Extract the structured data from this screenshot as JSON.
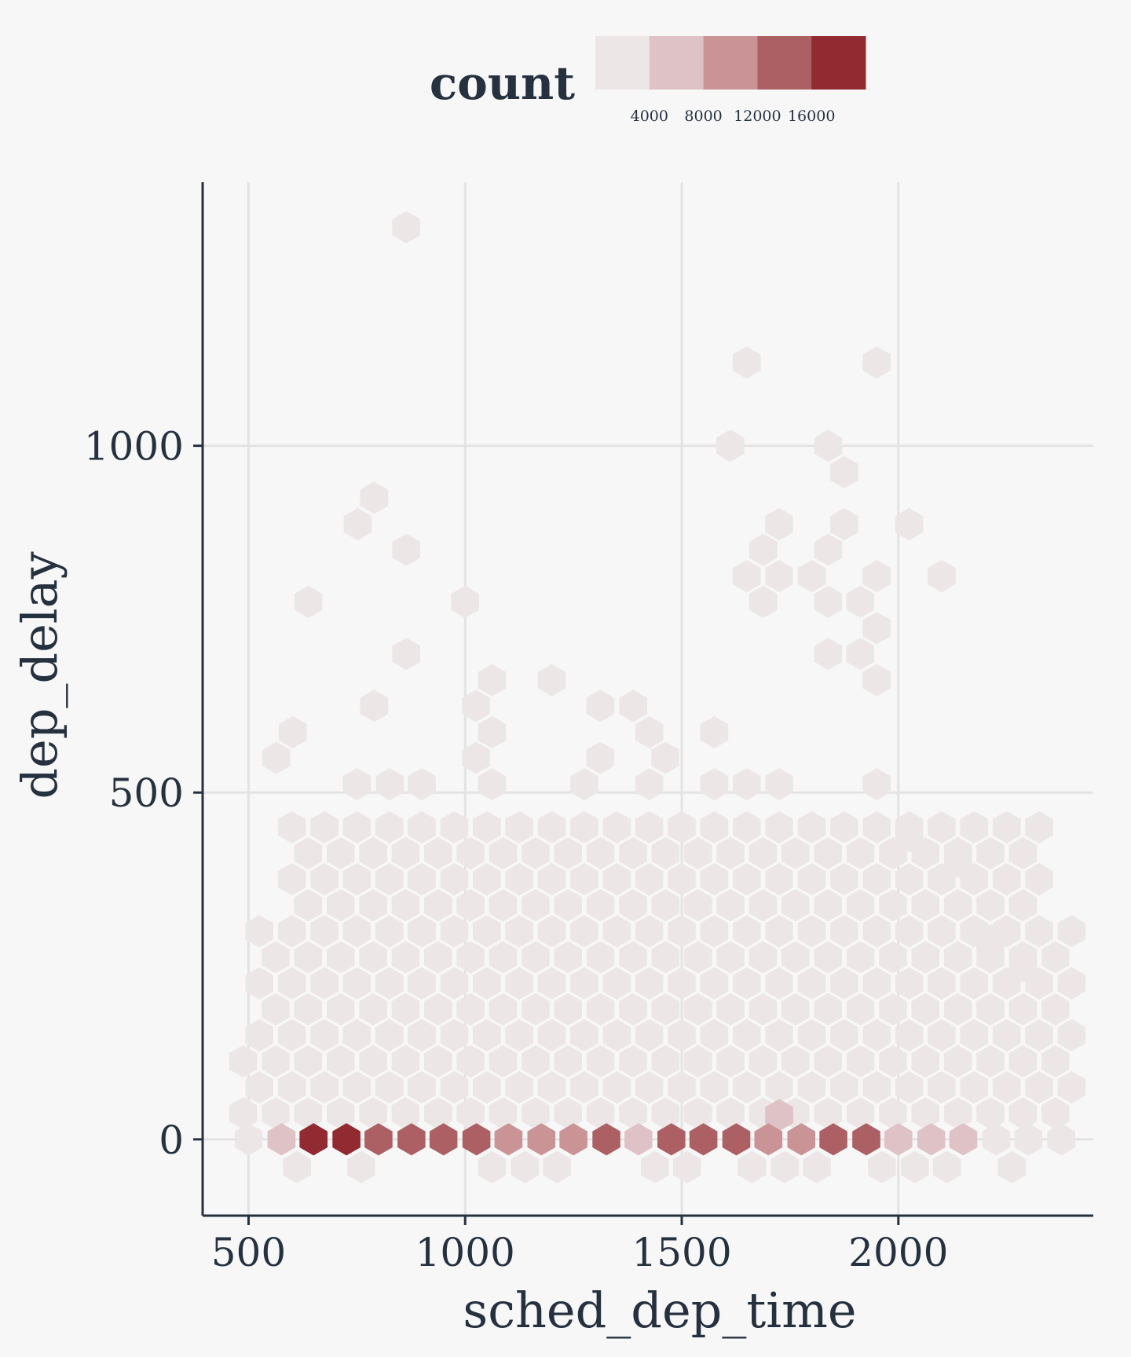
{
  "chart_data": {
    "type": "hexbin",
    "xlabel": "sched_dep_time",
    "ylabel": "dep_delay",
    "xlim": [
      394,
      2450
    ],
    "ylim": [
      -110,
      1380
    ],
    "x_ticks": [
      500,
      1000,
      1500,
      2000
    ],
    "y_ticks": [
      0,
      500,
      1000
    ],
    "x_tick_labels": [
      "500",
      "1000",
      "1500",
      "2000"
    ],
    "y_tick_labels": [
      "0",
      "500",
      "1000"
    ],
    "grid": true,
    "legend": {
      "title": "count",
      "placement": "top",
      "colors": [
        "#ece6e6",
        "#dfc2c5",
        "#ca9497",
        "#ad6064",
        "#922a32"
      ],
      "tick_values": [
        4000,
        8000,
        12000,
        16000
      ],
      "tick_labels": [
        "4000",
        "8000",
        "12000",
        "16000"
      ]
    },
    "hex_spacing": {
      "dx": 37.5,
      "dy": 37.5
    },
    "outliers": [
      [
        864,
        1315
      ],
      [
        1650,
        1120
      ],
      [
        1950,
        1120
      ],
      [
        1612,
        1000
      ],
      [
        1838,
        1000
      ],
      [
        1875,
        962
      ],
      [
        790,
        925
      ],
      [
        752,
        887
      ],
      [
        1725,
        887
      ],
      [
        1875,
        887
      ],
      [
        2025,
        887
      ],
      [
        864,
        850
      ],
      [
        1688,
        850
      ],
      [
        1838,
        850
      ],
      [
        1650,
        812
      ],
      [
        1725,
        812
      ],
      [
        1800,
        812
      ],
      [
        1950,
        812
      ],
      [
        2100,
        812
      ],
      [
        638,
        775
      ],
      [
        1000,
        775
      ],
      [
        1688,
        775
      ],
      [
        1838,
        775
      ],
      [
        1912,
        775
      ],
      [
        1950,
        737
      ],
      [
        864,
        700
      ],
      [
        1838,
        700
      ],
      [
        1912,
        700
      ],
      [
        1062,
        662
      ],
      [
        1200,
        662
      ],
      [
        1950,
        662
      ],
      [
        790,
        625
      ],
      [
        1025,
        625
      ],
      [
        1312,
        625
      ],
      [
        1388,
        625
      ],
      [
        602,
        587
      ],
      [
        1062,
        587
      ],
      [
        1425,
        587
      ],
      [
        1575,
        587
      ],
      [
        564,
        550
      ],
      [
        1025,
        550
      ],
      [
        1312,
        550
      ],
      [
        1462,
        550
      ],
      [
        750,
        512
      ],
      [
        826,
        512
      ],
      [
        900,
        512
      ],
      [
        1062,
        512
      ],
      [
        1275,
        512
      ],
      [
        1425,
        512
      ],
      [
        1575,
        512
      ],
      [
        1650,
        512
      ],
      [
        1725,
        512
      ],
      [
        1950,
        512
      ],
      [
        2025,
        437
      ],
      [
        2138,
        400
      ],
      [
        2212,
        287
      ],
      [
        2288,
        250
      ]
    ],
    "dense_region": [
      {
        "x": [
          590,
          2350
        ],
        "y": [
          90,
          450
        ]
      },
      {
        "x": [
          520,
          2400
        ],
        "y": [
          40,
          300
        ]
      },
      {
        "x": [
          480,
          2420
        ],
        "y": [
          20,
          120
        ]
      }
    ],
    "row_y0": [
      {
        "x": 500,
        "count": 1500
      },
      {
        "x": 576,
        "count": 7000
      },
      {
        "x": 650,
        "count": 18500
      },
      {
        "x": 726,
        "count": 18000
      },
      {
        "x": 800,
        "count": 14000
      },
      {
        "x": 876,
        "count": 14000
      },
      {
        "x": 950,
        "count": 14500
      },
      {
        "x": 1026,
        "count": 14000
      },
      {
        "x": 1100,
        "count": 8000
      },
      {
        "x": 1176,
        "count": 11000
      },
      {
        "x": 1250,
        "count": 10500
      },
      {
        "x": 1326,
        "count": 14500
      },
      {
        "x": 1400,
        "count": 7500
      },
      {
        "x": 1476,
        "count": 14000
      },
      {
        "x": 1550,
        "count": 14500
      },
      {
        "x": 1626,
        "count": 14000
      },
      {
        "x": 1700,
        "count": 10500
      },
      {
        "x": 1776,
        "count": 10500
      },
      {
        "x": 1850,
        "count": 14000
      },
      {
        "x": 1926,
        "count": 14000
      },
      {
        "x": 2000,
        "count": 7000
      },
      {
        "x": 2076,
        "count": 7000
      },
      {
        "x": 2150,
        "count": 7500
      },
      {
        "x": 2226,
        "count": 2000
      },
      {
        "x": 2300,
        "count": 2000
      },
      {
        "x": 2376,
        "count": 1500
      }
    ],
    "row_below": [
      {
        "x": 612,
        "y": -40,
        "count": 1500
      },
      {
        "x": 760,
        "y": -40,
        "count": 1500
      },
      {
        "x": 1062,
        "y": -40,
        "count": 1500
      },
      {
        "x": 1138,
        "y": -40,
        "count": 1500
      },
      {
        "x": 1212,
        "y": -40,
        "count": 1500
      },
      {
        "x": 1438,
        "y": -40,
        "count": 1500
      },
      {
        "x": 1512,
        "y": -40,
        "count": 1500
      },
      {
        "x": 1662,
        "y": -40,
        "count": 1500
      },
      {
        "x": 1738,
        "y": -40,
        "count": 1500
      },
      {
        "x": 1812,
        "y": -40,
        "count": 1500
      },
      {
        "x": 1962,
        "y": -40,
        "count": 1500
      },
      {
        "x": 2038,
        "y": -40,
        "count": 1500
      },
      {
        "x": 2112,
        "y": -40,
        "count": 1500
      },
      {
        "x": 2262,
        "y": -40,
        "count": 1500
      },
      {
        "x": 1725,
        "y": 35,
        "count": 7000
      }
    ]
  }
}
